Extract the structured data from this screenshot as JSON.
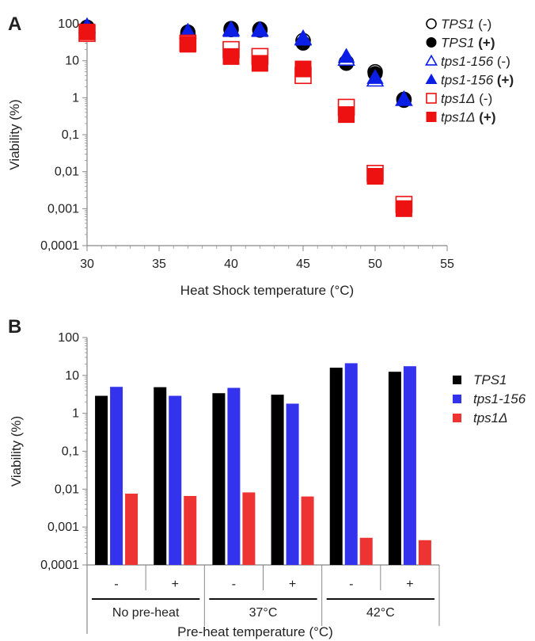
{
  "panel_a_letter": "A",
  "panel_b_letter": "B",
  "colors": {
    "black": "#000000",
    "blue": "#0a1ee6",
    "blue_bar": "#3333ee",
    "red": "#ee1111",
    "red_bar": "#ee3333",
    "axis": "#888888"
  },
  "chart_data": [
    {
      "type": "scatter",
      "panel": "A",
      "xlabel": "Heat Shock temperature (°C)",
      "ylabel": "Viability (%)",
      "xlim": [
        30,
        55
      ],
      "ylim": [
        0.0001,
        100
      ],
      "yscale": "log",
      "x_ticks": [
        "30",
        "35",
        "40",
        "45",
        "50",
        "55"
      ],
      "y_ticks": [
        "100",
        "10",
        "1",
        "0,1",
        "0,01",
        "0,001",
        "0,0001"
      ],
      "legend_position": "right",
      "series": [
        {
          "name_main": "TPS1",
          "name_suffix": "(-)",
          "suffix_bold": false,
          "marker": "circle",
          "filled": false,
          "color": "#000000",
          "points": [
            [
              30,
              80
            ],
            [
              37,
              55
            ],
            [
              40,
              70
            ],
            [
              42,
              68
            ],
            [
              45,
              35
            ],
            [
              48,
              9
            ],
            [
              50,
              5
            ],
            [
              52,
              0.9
            ]
          ]
        },
        {
          "name_main": "TPS1",
          "name_suffix": "(+)",
          "suffix_bold": true,
          "marker": "circle",
          "filled": true,
          "color": "#000000",
          "points": [
            [
              30,
              75
            ],
            [
              37,
              60
            ],
            [
              40,
              75
            ],
            [
              42,
              72
            ],
            [
              45,
              30
            ],
            [
              48,
              8.5
            ],
            [
              50,
              4.5
            ],
            [
              52,
              0.85
            ]
          ]
        },
        {
          "name_main": "tps1-156",
          "name_suffix": "(-)",
          "suffix_bold": false,
          "marker": "triangle",
          "filled": false,
          "color": "#0a1ee6",
          "points": [
            [
              30,
              85
            ],
            [
              37,
              60
            ],
            [
              40,
              70
            ],
            [
              42,
              68
            ],
            [
              45,
              40
            ],
            [
              48,
              11
            ],
            [
              50,
              3
            ],
            [
              52,
              0.9
            ]
          ]
        },
        {
          "name_main": "tps1-156",
          "name_suffix": "(+)",
          "suffix_bold": true,
          "marker": "triangle",
          "filled": true,
          "color": "#0a1ee6",
          "points": [
            [
              30,
              85
            ],
            [
              37,
              62
            ],
            [
              40,
              65
            ],
            [
              42,
              65
            ],
            [
              45,
              38
            ],
            [
              48,
              13
            ],
            [
              50,
              3.5
            ],
            [
              52,
              0.9
            ]
          ]
        },
        {
          "name_main": "tps1Δ",
          "name_suffix": "(-)",
          "suffix_bold": false,
          "marker": "square",
          "filled": false,
          "color": "#ee1111",
          "points": [
            [
              30,
              55
            ],
            [
              37,
              30
            ],
            [
              40,
              20
            ],
            [
              42,
              13
            ],
            [
              45,
              4
            ],
            [
              48,
              0.55
            ],
            [
              50,
              0.009
            ],
            [
              52,
              0.0013
            ]
          ]
        },
        {
          "name_main": "tps1Δ",
          "name_suffix": "(+)",
          "suffix_bold": true,
          "marker": "square",
          "filled": true,
          "color": "#ee1111",
          "points": [
            [
              30,
              60
            ],
            [
              37,
              28
            ],
            [
              40,
              13
            ],
            [
              42,
              8.5
            ],
            [
              45,
              6
            ],
            [
              48,
              0.35
            ],
            [
              50,
              0.0075
            ],
            [
              52,
              0.001
            ]
          ]
        }
      ]
    },
    {
      "type": "bar",
      "panel": "B",
      "xlabel": "Pre-heat temperature (°C)",
      "ylabel": "Viability (%)",
      "ylim": [
        0.0001,
        100
      ],
      "yscale": "log",
      "y_ticks": [
        "100",
        "10",
        "1",
        "0,1",
        "0,01",
        "0,001",
        "0,0001"
      ],
      "legend_position": "right",
      "sublabels": [
        "-",
        "+",
        "-",
        "+",
        "-",
        "+"
      ],
      "groups": [
        "No pre-heat",
        "37°C",
        "42°C"
      ],
      "series": [
        {
          "name": "TPS1",
          "color": "#000000",
          "values": [
            2.9,
            4.9,
            3.4,
            3.1,
            16,
            12.5
          ]
        },
        {
          "name": "tps1-156",
          "color": "#3333ee",
          "values": [
            5.0,
            2.9,
            4.7,
            1.8,
            21,
            17.5
          ]
        },
        {
          "name": "tps1Δ",
          "color": "#ee3333",
          "values": [
            0.0076,
            0.0066,
            0.0082,
            0.0064,
            0.00052,
            0.00045
          ]
        }
      ]
    }
  ]
}
